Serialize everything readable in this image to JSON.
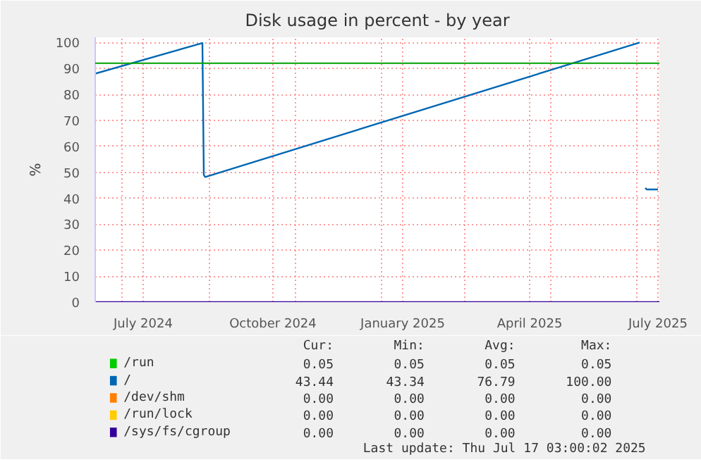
{
  "chart_data": {
    "type": "line",
    "title": "Disk usage in percent - by year",
    "ylabel": "%",
    "xlim": [
      "2024-06-12",
      "2025-07-17"
    ],
    "xticks": [
      {
        "value": "2024-07-01",
        "label": null
      },
      {
        "value": "2024-07-16",
        "label": "July 2024"
      },
      {
        "value": "2024-09-01",
        "label": null
      },
      {
        "value": "2024-10-16",
        "label": "October 2024"
      },
      {
        "value": "2024-11-01",
        "label": null
      },
      {
        "value": "2025-01-01",
        "label": null
      },
      {
        "value": "2025-01-16",
        "label": "January 2025"
      },
      {
        "value": "2025-03-01",
        "label": null
      },
      {
        "value": "2025-04-16",
        "label": "April 2025"
      },
      {
        "value": "2025-05-01",
        "label": null
      },
      {
        "value": "2025-07-01",
        "label": null
      },
      {
        "value": "2025-07-16",
        "label": "July 2025"
      }
    ],
    "ylim": [
      0,
      102
    ],
    "yticks": [
      0,
      10,
      20,
      30,
      40,
      50,
      60,
      70,
      80,
      90,
      100
    ],
    "grid": true,
    "legend": "bottom",
    "ref_lines": [
      {
        "axis": "y",
        "value": 92,
        "color": "#00a000"
      }
    ],
    "series": [
      {
        "name": "/run",
        "color": "#00cc00"
      },
      {
        "name": "/",
        "color": "#0066b3",
        "x": [
          "2024-06-12",
          "2024-08-27",
          "2024-08-28",
          "2024-08-29",
          "2025-07-03",
          "2025-07-05",
          "2025-07-07",
          "2025-07-08",
          "2025-07-16"
        ],
        "values": [
          88,
          99.8,
          49,
          48.2,
          100,
          null,
          44,
          43.4,
          43.4
        ]
      },
      {
        "name": "/dev/shm",
        "color": "#ff8000"
      },
      {
        "name": "/run/lock",
        "color": "#ffcc00"
      },
      {
        "name": "/sys/fs/cgroup",
        "color": "#330099",
        "x": [
          "2024-06-12",
          "2025-07-17"
        ],
        "values": [
          0,
          0
        ]
      }
    ],
    "annotations": [
      "Cur:",
      "Min:",
      "Avg:",
      "Max:",
      "0.05",
      "0.05",
      "0.05",
      "0.05",
      "43.44",
      "43.34",
      "76.79",
      "100.00",
      "0.00",
      "0.00",
      "0.00",
      "0.00",
      "0.00",
      "0.00",
      "0.00",
      "0.00",
      "0.00",
      "0.00",
      "0.00",
      "0.00",
      "Last update: Thu Jul 17 03:00:02 2025"
    ]
  }
}
